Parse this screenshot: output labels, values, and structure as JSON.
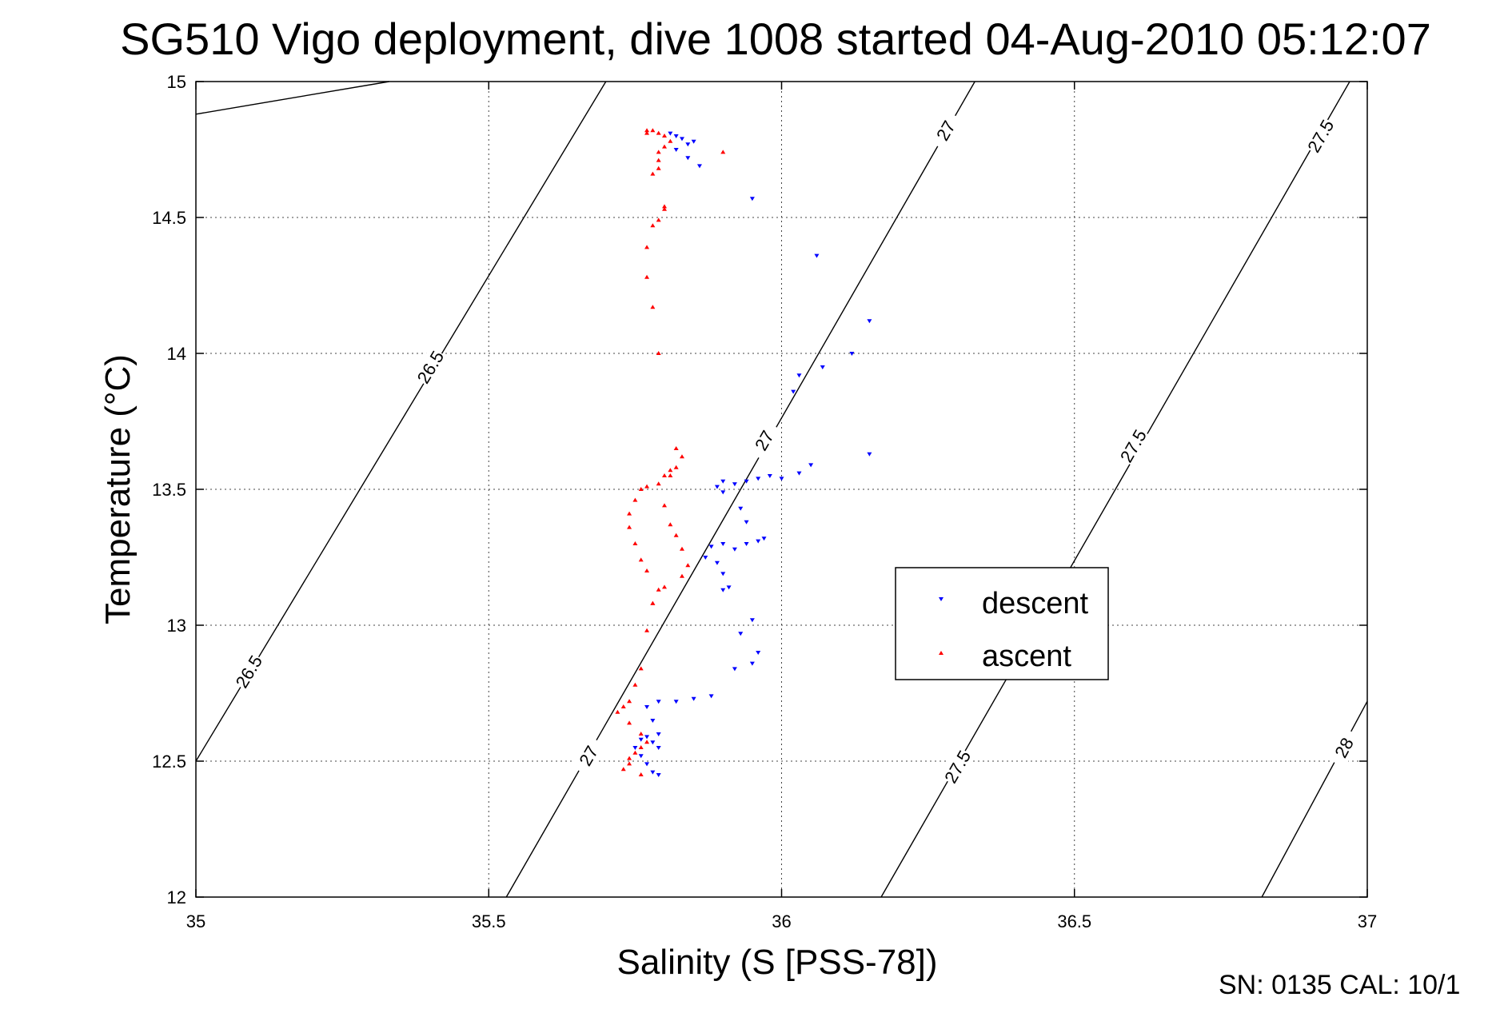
{
  "chart_data": {
    "type": "scatter",
    "title": "SG510 Vigo deployment, dive 1008 started 04-Aug-2010 05:12:07",
    "xlabel": "Salinity (S [PSS-78])",
    "ylabel": "Temperature (°C)",
    "xlim": [
      35,
      37
    ],
    "ylim": [
      12,
      15
    ],
    "xticks": [
      "35",
      "35.5",
      "36",
      "36.5",
      "37"
    ],
    "yticks": [
      "12",
      "12.5",
      "13",
      "13.5",
      "14",
      "14.5",
      "15"
    ],
    "grid": true,
    "legend": {
      "placement": "center-right",
      "entries": [
        "descent",
        "ascent"
      ]
    },
    "footer": "SN: 0135  CAL: 10/1",
    "colors": {
      "descent": "#0000ff",
      "ascent": "#ff0000",
      "contour": "#000000"
    },
    "series": [
      {
        "name": "descent",
        "marker": "triangle-down",
        "x": [
          35.81,
          35.82,
          35.83,
          35.84,
          35.85,
          35.82,
          35.84,
          35.86,
          35.95,
          36.06,
          36.15,
          36.12,
          36.07,
          36.03,
          36.02,
          36.15,
          36.05,
          36.03,
          36.0,
          35.98,
          35.96,
          35.94,
          35.92,
          35.9,
          35.89,
          35.9,
          35.93,
          35.94,
          35.97,
          35.96,
          35.94,
          35.92,
          35.9,
          35.88,
          35.87,
          35.89,
          35.9,
          35.91,
          35.9,
          35.95,
          35.93,
          35.96,
          35.95,
          35.92,
          35.88,
          35.85,
          35.82,
          35.79,
          35.77,
          35.78,
          35.79,
          35.78,
          35.76,
          35.75,
          35.77,
          35.79,
          35.76,
          35.77,
          35.78,
          35.79
        ],
        "y": [
          14.81,
          14.8,
          14.79,
          14.77,
          14.78,
          14.75,
          14.72,
          14.69,
          14.57,
          14.36,
          14.12,
          14.0,
          13.95,
          13.92,
          13.86,
          13.63,
          13.59,
          13.56,
          13.54,
          13.55,
          13.54,
          13.53,
          13.52,
          13.53,
          13.51,
          13.49,
          13.43,
          13.38,
          13.32,
          13.31,
          13.3,
          13.28,
          13.3,
          13.29,
          13.25,
          13.23,
          13.19,
          13.14,
          13.13,
          13.02,
          12.97,
          12.9,
          12.86,
          12.84,
          12.74,
          12.73,
          12.72,
          12.72,
          12.7,
          12.65,
          12.6,
          12.57,
          12.58,
          12.55,
          12.59,
          12.55,
          12.52,
          12.49,
          12.46,
          12.45
        ]
      },
      {
        "name": "ascent",
        "marker": "triangle-up",
        "x": [
          35.76,
          35.73,
          35.74,
          35.74,
          35.75,
          35.76,
          35.77,
          35.76,
          35.74,
          35.72,
          35.73,
          35.74,
          35.75,
          35.76,
          35.77,
          35.78,
          35.79,
          35.77,
          35.76,
          35.75,
          35.74,
          35.74,
          35.75,
          35.76,
          35.77,
          35.79,
          35.8,
          35.81,
          35.82,
          35.83,
          35.82,
          35.81,
          35.8,
          35.81,
          35.82,
          35.83,
          35.84,
          35.83,
          35.8,
          35.78,
          35.79,
          35.78,
          35.77,
          35.77,
          35.78,
          35.79,
          35.8,
          35.8,
          35.78,
          35.79,
          35.79,
          35.79,
          35.8,
          35.9,
          35.81,
          35.8,
          35.79,
          35.78,
          35.77,
          35.77
        ],
        "y": [
          12.45,
          12.47,
          12.49,
          12.51,
          12.53,
          12.55,
          12.57,
          12.6,
          12.64,
          12.68,
          12.7,
          12.72,
          12.78,
          12.84,
          12.98,
          13.08,
          13.13,
          13.2,
          13.24,
          13.3,
          13.36,
          13.41,
          13.46,
          13.5,
          13.51,
          13.52,
          13.55,
          13.57,
          13.65,
          13.62,
          13.58,
          13.55,
          13.44,
          13.37,
          13.33,
          13.28,
          13.22,
          13.18,
          13.14,
          13.08,
          14.0,
          14.17,
          14.28,
          14.39,
          14.47,
          14.49,
          14.53,
          14.54,
          14.66,
          14.68,
          14.71,
          14.74,
          14.76,
          14.74,
          14.78,
          14.8,
          14.81,
          14.82,
          14.82,
          14.81
        ]
      }
    ],
    "contours": [
      {
        "label": "26.5",
        "points": [
          [
            35.0,
            14.88
          ],
          [
            35.33,
            15.0
          ]
        ],
        "label_positions": []
      },
      {
        "label": "26.5",
        "points": [
          [
            35.0,
            12.5
          ],
          [
            35.7,
            15.0
          ]
        ],
        "label_positions": [
          [
            35.4,
            13.95
          ],
          [
            35.09,
            12.83
          ]
        ]
      },
      {
        "label": "27",
        "points": [
          [
            35.53,
            12.0
          ],
          [
            36.33,
            15.0
          ]
        ],
        "label_positions": [
          [
            36.28,
            14.82
          ],
          [
            35.97,
            13.68
          ],
          [
            35.67,
            12.52
          ]
        ]
      },
      {
        "label": "27.5",
        "points": [
          [
            36.17,
            12.0
          ],
          [
            36.97,
            15.0
          ]
        ],
        "label_positions": [
          [
            36.92,
            14.8
          ],
          [
            36.6,
            13.66
          ],
          [
            36.3,
            12.48
          ]
        ]
      },
      {
        "label": "28",
        "points": [
          [
            36.82,
            12.0
          ],
          [
            37.0,
            12.72
          ]
        ],
        "label_positions": [
          [
            36.96,
            12.55
          ]
        ]
      }
    ]
  }
}
